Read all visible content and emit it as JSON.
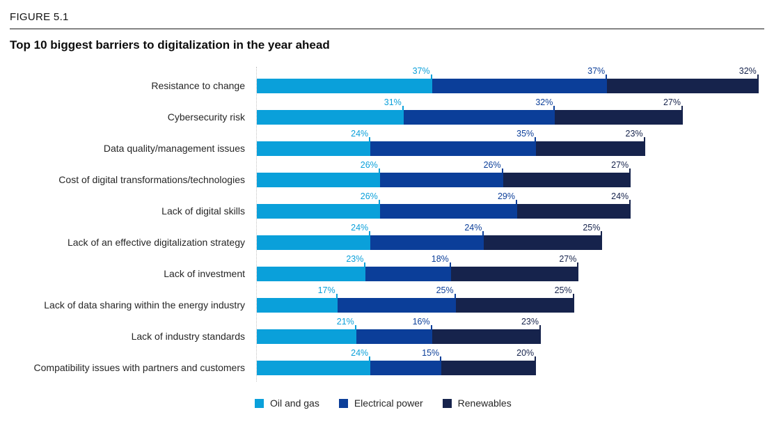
{
  "figure_label": "FIGURE 5.1",
  "title": "Top 10 biggest barriers to digitalization in the year ahead",
  "chart_data": {
    "type": "bar",
    "orientation": "horizontal",
    "stacked": true,
    "grid": false,
    "legend_position": "bottom",
    "value_suffix": "%",
    "xlim": [
      0,
      106
    ],
    "categories": [
      "Resistance to change",
      "Cybersecurity risk",
      "Data quality/management issues",
      "Cost of digital transformations/technologies",
      "Lack of digital skills",
      "Lack of an effective digitalization strategy",
      "Lack of investment",
      "Lack of data sharing within the energy industry",
      "Lack of industry standards",
      "Compatibility issues with partners and customers"
    ],
    "series": [
      {
        "name": "Oil and gas",
        "color": "#0AA0DA",
        "values": [
          37,
          31,
          24,
          26,
          26,
          24,
          23,
          17,
          21,
          24
        ]
      },
      {
        "name": "Electrical power",
        "color": "#0B3E99",
        "values": [
          37,
          32,
          35,
          26,
          29,
          24,
          18,
          25,
          16,
          15
        ]
      },
      {
        "name": "Renewables",
        "color": "#16234C",
        "values": [
          32,
          27,
          23,
          27,
          24,
          25,
          27,
          25,
          23,
          20
        ]
      }
    ]
  }
}
